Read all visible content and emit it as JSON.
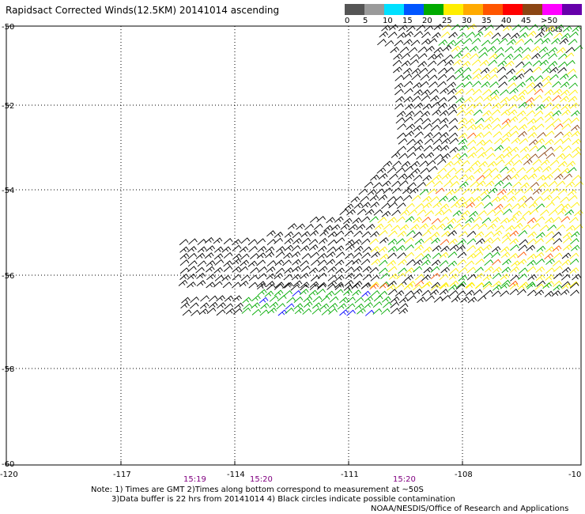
{
  "title": "Rapidsact Corrected Winds(12.5KM) 20141014 ascending",
  "legend": {
    "colors": [
      "#555555",
      "#9a9a9a",
      "#00e0ff",
      "#0055ff",
      "#00aa00",
      "#ffee00",
      "#ffaa00",
      "#ff5500",
      "#ff0000",
      "#8b4513",
      "#ff00ff",
      "#6600aa"
    ],
    "tick_labels": [
      "0",
      "5",
      "10",
      "15",
      "20",
      "25",
      "30",
      "35",
      "40",
      "45",
      ">50 knots"
    ]
  },
  "axes": {
    "lon_labels": [
      "-120",
      "-117",
      "-114",
      "-111",
      "-108",
      "-10"
    ],
    "lat_labels": [
      "-50",
      "-52",
      "-54",
      "-56",
      "-58",
      "-60"
    ]
  },
  "time_labels": [
    "15:19",
    "15:20",
    "15:20"
  ],
  "time_color": "#800080",
  "notes": {
    "line1": "Note: 1) Times are GMT 2)Times along bottom correspond to measurement at ~50S",
    "line2": "3)Data buffer is 22 hrs from 20141014 4) Black circles indicate possible contamination"
  },
  "credit": "NOAA/NESDIS/Office of Research and Applications",
  "wind_colors": {
    "black": "#000000",
    "yellow": "#ffee00",
    "green": "#00aa00",
    "orange": "#ff5500",
    "brown": "#8b4513",
    "blue": "#0000ff"
  }
}
